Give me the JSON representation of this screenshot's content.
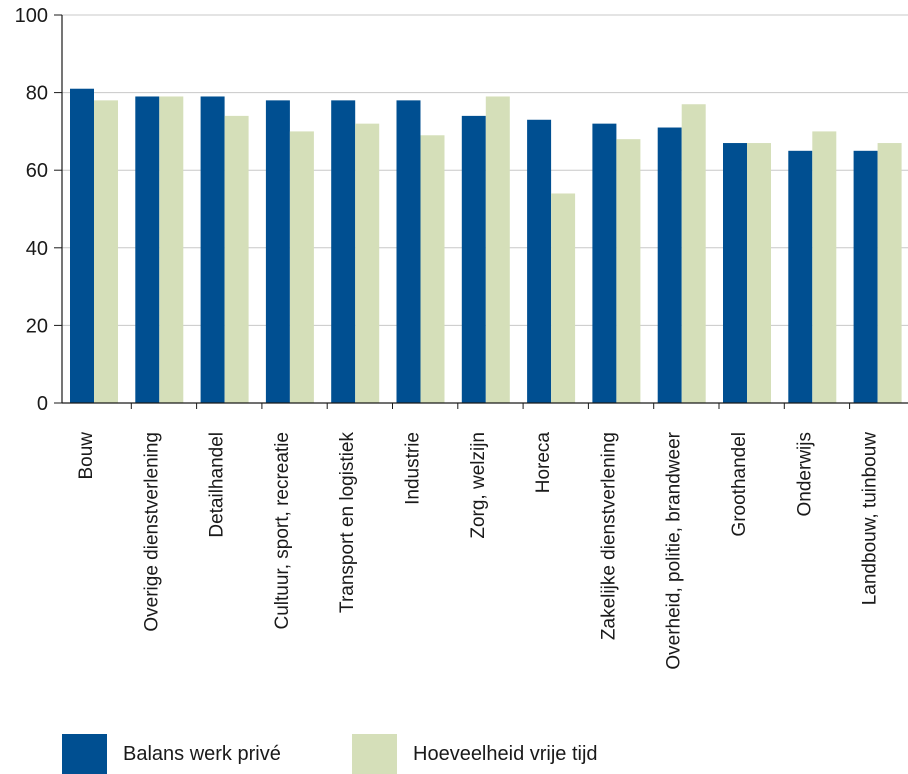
{
  "chart_data": {
    "type": "bar",
    "title": "",
    "xlabel": "",
    "ylabel": "",
    "ylim": [
      0,
      100
    ],
    "yticks": [
      0,
      20,
      40,
      60,
      80,
      100
    ],
    "grid": true,
    "legend_position": "bottom-left",
    "categories": [
      "Bouw",
      "Overige dienstverlening",
      "Detailhandel",
      "Cultuur, sport, recreatie",
      "Transport en logistiek",
      "Industrie",
      "Zorg, welzijn",
      "Horeca",
      "Zakelijke dienstverlening",
      "Overheid, politie, brandweer",
      "Groothandel",
      "Onderwijs",
      "Landbouw, tuinbouw"
    ],
    "series": [
      {
        "name": "Balans werk privé",
        "color": "#004f91",
        "values": [
          81,
          79,
          79,
          78,
          78,
          78,
          74,
          73,
          72,
          71,
          67,
          65,
          65
        ]
      },
      {
        "name": "Hoeveelheid vrije tijd",
        "color": "#d5dfb9",
        "values": [
          78,
          79,
          74,
          70,
          72,
          69,
          79,
          54,
          68,
          77,
          67,
          70,
          67
        ]
      }
    ]
  }
}
